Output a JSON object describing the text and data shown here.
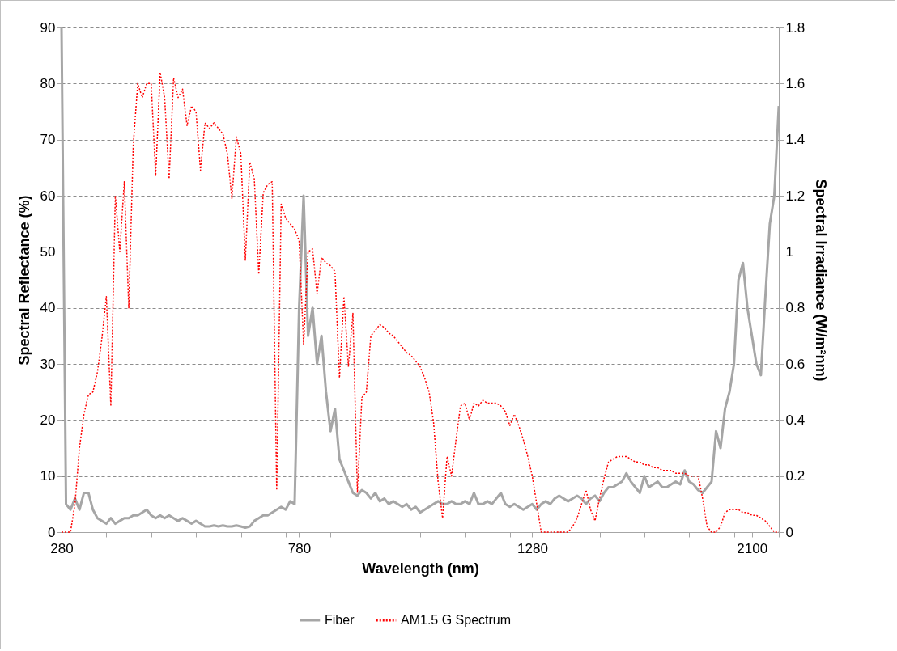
{
  "chart_data": {
    "type": "line",
    "xlabel": "Wavelength (nm)",
    "ylabel": "Spectral Reflectance (%)",
    "y2label": "Spectral Irradiance (W/m²nm)",
    "categories": [
      "280",
      null,
      null,
      null,
      null,
      null,
      null,
      null,
      null,
      null,
      null,
      null,
      null,
      null,
      null,
      null,
      null,
      null,
      null,
      null,
      null,
      null,
      null,
      null,
      null,
      null,
      null,
      null,
      null,
      null,
      null,
      null,
      null,
      null,
      null,
      null,
      null,
      null,
      null,
      null,
      null,
      null,
      null,
      null,
      null,
      null,
      null,
      null,
      null,
      null,
      null,
      null,
      null,
      "780",
      null,
      null,
      null,
      null,
      null,
      null,
      null,
      null,
      null,
      null,
      null,
      null,
      null,
      null,
      null,
      null,
      null,
      null,
      null,
      null,
      null,
      null,
      null,
      null,
      null,
      null,
      null,
      null,
      null,
      null,
      null,
      null,
      null,
      null,
      null,
      null,
      null,
      null,
      null,
      null,
      null,
      null,
      null,
      null,
      null,
      null,
      null,
      null,
      null,
      null,
      null,
      "1280",
      null,
      null,
      null,
      null,
      null,
      null,
      null,
      null,
      null,
      null,
      null,
      null,
      null,
      null,
      null,
      null,
      null,
      null,
      null,
      null,
      null,
      null,
      null,
      null,
      null,
      null,
      null,
      null,
      null,
      null,
      null,
      null,
      null,
      null,
      null,
      null,
      null,
      null,
      null,
      null,
      null,
      null,
      null,
      null,
      null,
      null,
      null,
      null,
      "2100",
      null,
      null,
      null,
      null,
      null,
      null
    ],
    "ylim": [
      0,
      90
    ],
    "yticks": [
      0,
      10,
      20,
      30,
      40,
      50,
      60,
      70,
      80,
      90
    ],
    "y2lim": [
      0,
      1.8
    ],
    "y2ticks": [
      0,
      0.2,
      0.4,
      0.6,
      0.8,
      1,
      1.2,
      1.4,
      1.6,
      1.8
    ],
    "grid": "y",
    "legend": "bottom",
    "marker": "none",
    "series": [
      {
        "name": "Fiber",
        "color": "#a6a6a6",
        "line_style": "solid",
        "values": [
          90,
          5,
          4,
          6,
          4,
          7,
          7,
          4,
          2.5,
          2,
          1.5,
          2.5,
          1.5,
          2,
          2.5,
          2.5,
          3,
          3,
          3.5,
          4,
          3,
          2.5,
          3,
          2.5,
          3,
          2.5,
          2,
          2.5,
          2,
          1.5,
          2,
          1.5,
          1,
          1,
          1.2,
          1,
          1.2,
          1,
          1,
          1.2,
          1,
          0.8,
          1,
          2,
          2.5,
          3,
          3,
          3.5,
          4,
          4.5,
          4,
          5.5,
          5,
          40,
          60,
          35,
          40,
          30,
          35,
          25,
          18,
          22,
          13,
          11,
          9,
          7,
          6.5,
          7.5,
          7,
          6,
          7,
          5.5,
          6,
          5,
          5.5,
          5,
          4.5,
          5,
          4,
          4.5,
          3.5,
          4,
          4.5,
          5,
          5.5,
          5,
          5,
          5.5,
          5,
          5,
          5.5,
          5,
          7,
          5,
          5,
          5.5,
          5,
          6,
          7,
          5,
          4.5,
          5,
          4.5,
          4,
          4.5,
          5,
          4,
          5,
          5.5,
          5,
          6,
          6.5,
          6,
          5.5,
          6,
          6.5,
          6,
          5,
          6,
          6.5,
          5.5,
          7,
          8,
          8,
          8.5,
          9,
          10.5,
          9,
          8,
          7,
          10,
          8,
          8.5,
          9,
          8,
          8,
          8.5,
          9,
          8.5,
          11,
          9,
          8.5,
          7.5,
          7,
          8,
          9,
          18,
          15,
          22,
          25,
          30,
          45,
          48,
          40,
          35,
          30,
          28,
          42,
          55,
          60,
          76
        ]
      },
      {
        "name": "AM1.5 G Spectrum",
        "color": "#ff0000",
        "line_style": "dotted",
        "axis": "y2",
        "values": [
          0,
          0,
          0,
          0.1,
          0.3,
          0.42,
          0.49,
          0.5,
          0.57,
          0.69,
          0.84,
          0.45,
          1.2,
          1,
          1.25,
          0.8,
          1.38,
          1.6,
          1.55,
          1.6,
          1.6,
          1.27,
          1.64,
          1.55,
          1.26,
          1.62,
          1.55,
          1.58,
          1.45,
          1.52,
          1.5,
          1.29,
          1.46,
          1.44,
          1.46,
          1.44,
          1.42,
          1.35,
          1.19,
          1.41,
          1.35,
          0.97,
          1.32,
          1.26,
          0.92,
          1.21,
          1.24,
          1.25,
          0.15,
          1.17,
          1.12,
          1.1,
          1.08,
          1.04,
          0.67,
          1,
          1.01,
          0.85,
          0.98,
          0.96,
          0.95,
          0.93,
          0.55,
          0.84,
          0.59,
          0.78,
          0.14,
          0.48,
          0.5,
          0.7,
          0.72,
          0.74,
          0.73,
          0.71,
          0.7,
          0.68,
          0.66,
          0.64,
          0.63,
          0.61,
          0.59,
          0.55,
          0.5,
          0.39,
          0.18,
          0.05,
          0.27,
          0.2,
          0.33,
          0.45,
          0.46,
          0.4,
          0.46,
          0.45,
          0.47,
          0.46,
          0.46,
          0.46,
          0.45,
          0.43,
          0.38,
          0.42,
          0.38,
          0.33,
          0.27,
          0.2,
          0.1,
          0,
          0,
          0,
          0,
          0,
          0,
          0,
          0.02,
          0.05,
          0.1,
          0.15,
          0.08,
          0.04,
          0.12,
          0.19,
          0.25,
          0.26,
          0.27,
          0.27,
          0.27,
          0.26,
          0.25,
          0.25,
          0.24,
          0.24,
          0.23,
          0.23,
          0.22,
          0.22,
          0.22,
          0.21,
          0.21,
          0.21,
          0.2,
          0.2,
          0.2,
          0.12,
          0.02,
          0,
          0,
          0.02,
          0.07,
          0.08,
          0.08,
          0.08,
          0.07,
          0.07,
          0.06,
          0.06,
          0.05,
          0.04,
          0.02,
          0,
          0
        ]
      }
    ]
  }
}
